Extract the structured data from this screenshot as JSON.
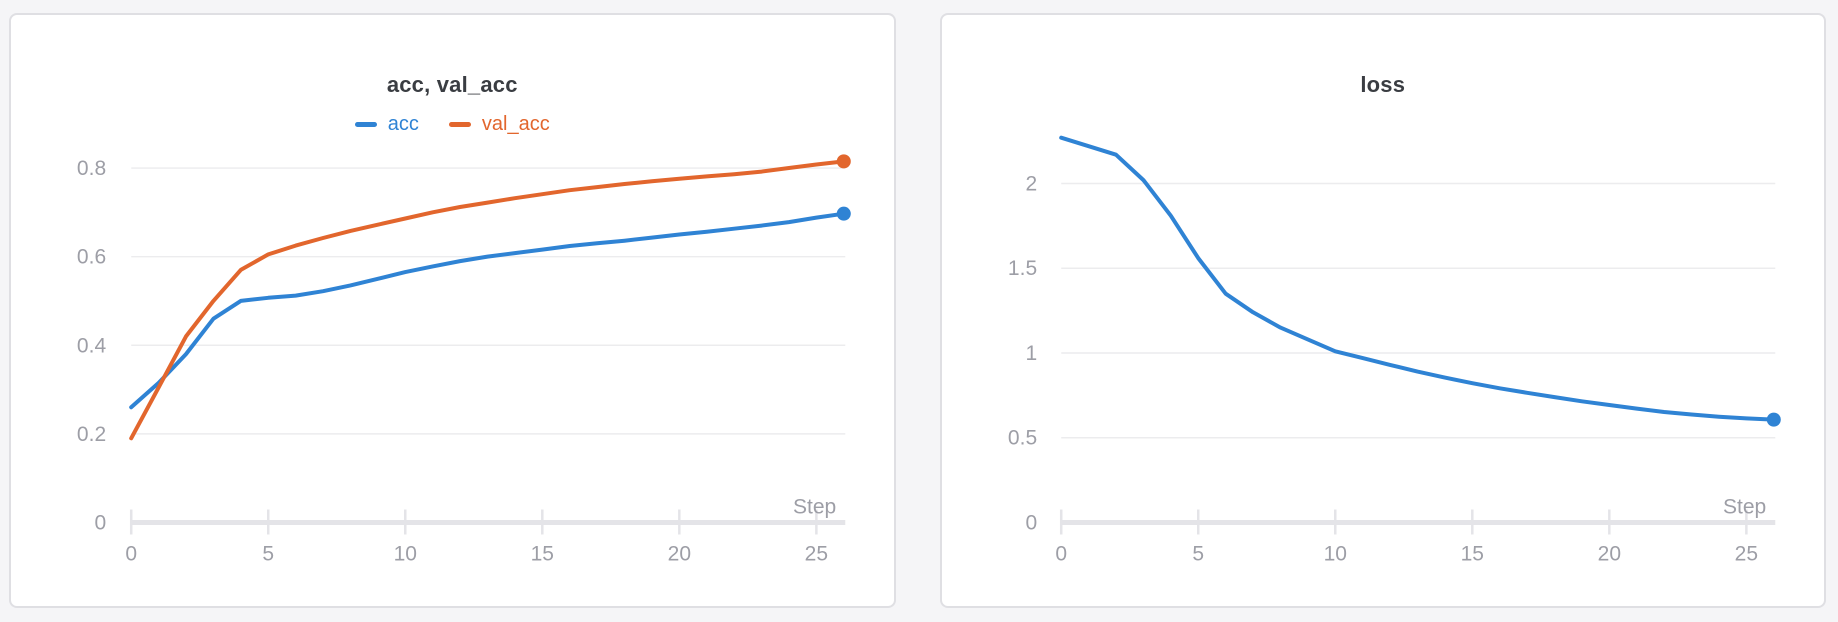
{
  "page": {
    "background": "#f5f5f7",
    "panel_border": "#dfdfe3",
    "title_color": "#3a3d42",
    "tick_label_color": "#9d9ea6",
    "gridline_color": "#ececee",
    "axis_color": "#e4e4e8"
  },
  "chart_data": [
    {
      "type": "line",
      "title": "acc, val_acc",
      "xlabel": "Step",
      "legend_position": "top",
      "grid": true,
      "end_markers": true,
      "x": [
        0,
        1,
        2,
        3,
        4,
        5,
        6,
        7,
        8,
        9,
        10,
        11,
        12,
        13,
        14,
        15,
        16,
        17,
        18,
        19,
        20,
        21,
        22,
        23,
        24,
        25,
        26
      ],
      "x_ticks": [
        0,
        5,
        10,
        15,
        20,
        25
      ],
      "y_ticks": [
        {
          "value": 0,
          "label": "0"
        },
        {
          "value": 0.2,
          "label": "0.2"
        },
        {
          "value": 0.4,
          "label": "0.4"
        },
        {
          "value": 0.6,
          "label": "0.6"
        },
        {
          "value": 0.8,
          "label": "0.8"
        }
      ],
      "ylim": [
        0,
        0.87
      ],
      "xlim": [
        0,
        26
      ],
      "series": [
        {
          "name": "acc",
          "color": "#2f83d4",
          "values": [
            0.26,
            0.315,
            0.38,
            0.46,
            0.5,
            0.507,
            0.512,
            0.522,
            0.535,
            0.55,
            0.565,
            0.578,
            0.59,
            0.6,
            0.608,
            0.616,
            0.624,
            0.63,
            0.636,
            0.643,
            0.65,
            0.656,
            0.663,
            0.67,
            0.678,
            0.688,
            0.697
          ]
        },
        {
          "name": "val_acc",
          "color": "#e2662d",
          "values": [
            0.19,
            0.305,
            0.42,
            0.5,
            0.57,
            0.605,
            0.625,
            0.642,
            0.658,
            0.672,
            0.686,
            0.7,
            0.712,
            0.722,
            0.732,
            0.741,
            0.75,
            0.757,
            0.764,
            0.77,
            0.776,
            0.781,
            0.786,
            0.792,
            0.8,
            0.808,
            0.815
          ]
        }
      ]
    },
    {
      "type": "line",
      "title": "loss",
      "xlabel": "Step",
      "legend_position": "none",
      "grid": true,
      "end_markers": true,
      "x": [
        0,
        1,
        2,
        3,
        4,
        5,
        6,
        7,
        8,
        9,
        10,
        11,
        12,
        13,
        14,
        15,
        16,
        17,
        18,
        19,
        20,
        21,
        22,
        23,
        24,
        25,
        26
      ],
      "x_ticks": [
        0,
        5,
        10,
        15,
        20,
        25
      ],
      "y_ticks": [
        {
          "value": 0,
          "label": "0"
        },
        {
          "value": 0.5,
          "label": "0.5"
        },
        {
          "value": 1,
          "label": "1"
        },
        {
          "value": 1.5,
          "label": "1.5"
        },
        {
          "value": 2,
          "label": "2"
        }
      ],
      "ylim": [
        0,
        2.33
      ],
      "xlim": [
        0,
        26
      ],
      "series": [
        {
          "name": "loss",
          "color": "#2f83d4",
          "values": [
            2.27,
            2.22,
            2.17,
            2.02,
            1.81,
            1.56,
            1.35,
            1.24,
            1.15,
            1.08,
            1.01,
            0.97,
            0.93,
            0.89,
            0.855,
            0.822,
            0.792,
            0.765,
            0.74,
            0.715,
            0.693,
            0.672,
            0.652,
            0.637,
            0.624,
            0.614,
            0.607
          ]
        }
      ]
    }
  ]
}
